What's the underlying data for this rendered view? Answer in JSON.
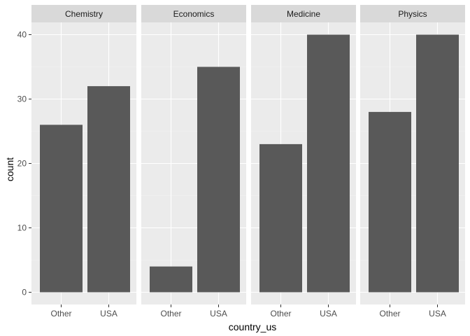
{
  "chart_data": {
    "type": "bar",
    "facets": [
      "Chemistry",
      "Economics",
      "Medicine",
      "Physics"
    ],
    "categories": [
      "Other",
      "USA"
    ],
    "values": {
      "Chemistry": [
        26,
        32
      ],
      "Economics": [
        4,
        35
      ],
      "Medicine": [
        23,
        40
      ],
      "Physics": [
        28,
        40
      ]
    },
    "xlabel": "country_us",
    "ylabel": "count",
    "yticks": [
      0,
      10,
      20,
      30,
      40
    ],
    "ylim": [
      0,
      42
    ],
    "grid": true,
    "colors": {
      "bar": "#595959",
      "panel": "#ebebeb",
      "strip": "#d9d9d9",
      "grid_major": "#ffffff",
      "grid_minor": "#f4f4f4"
    }
  }
}
